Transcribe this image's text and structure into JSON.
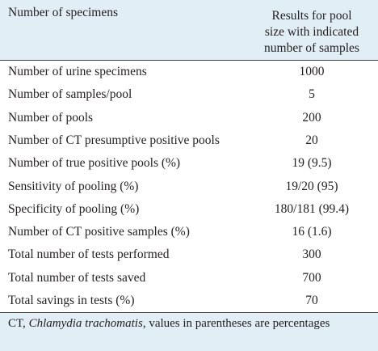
{
  "header": {
    "col_label": "Number of specimens",
    "col_result_lines": [
      "Results for pool",
      "size with indicated",
      "number of samples"
    ]
  },
  "rows": [
    {
      "label": "Number of urine specimens",
      "value": "1000"
    },
    {
      "label": "Number of samples/pool",
      "value": "5"
    },
    {
      "label": "Number of pools",
      "value": "200"
    },
    {
      "label": "Number of CT presumptive positive pools",
      "value": "20"
    },
    {
      "label": "Number of true positive pools (%)",
      "value": "19 (9.5)"
    },
    {
      "label": "Sensitivity of pooling (%)",
      "value": "19/20 (95)"
    },
    {
      "label": "Specificity of pooling (%)",
      "value": "180/181 (99.4)"
    },
    {
      "label": "Number of CT positive samples (%)",
      "value": "16 (1.6)"
    },
    {
      "label": "Total number of tests performed",
      "value": "300"
    },
    {
      "label": "Total number of tests saved",
      "value": "700"
    },
    {
      "label": "Total savings in tests (%)",
      "value": "70"
    }
  ],
  "footnote": {
    "abbr": "CT, ",
    "organism": "Chlamydia trachomatis",
    "rest": ", values in parentheses are percentages"
  },
  "colors": {
    "header_bg": "#e2eef5",
    "text": "#231f20",
    "rule": "#3e3e3e"
  }
}
